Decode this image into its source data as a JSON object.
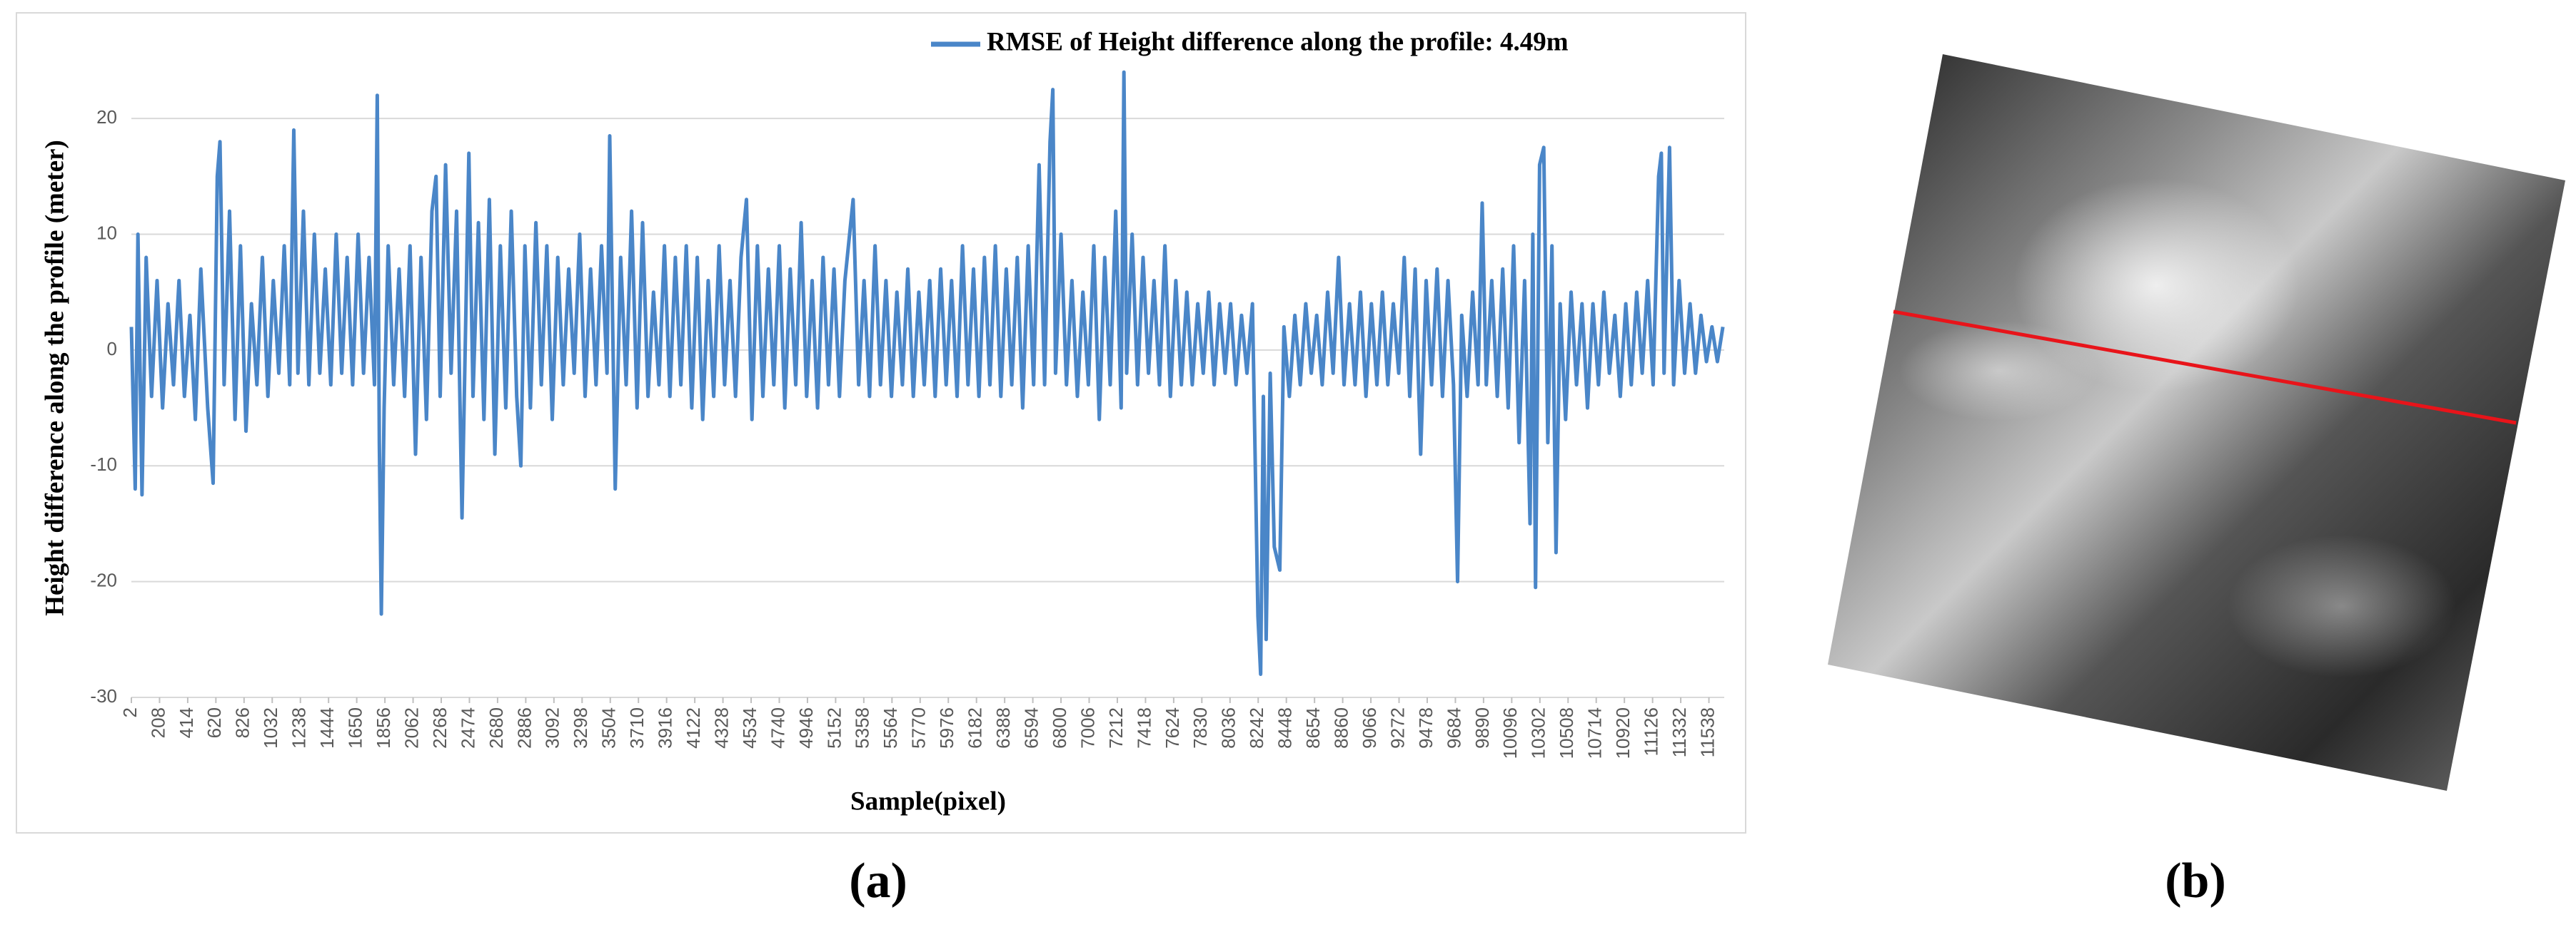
{
  "chart_data": {
    "type": "line",
    "legend_text_note_free": null,
    "ylabel": "Height difference along the profile (meter)",
    "xlabel": "Sample(pixel)",
    "ylim": [
      -30,
      25
    ],
    "yticks": [
      -30,
      -20,
      -10,
      0,
      10,
      20
    ],
    "grid": true,
    "xlim": [
      2,
      11650
    ],
    "xticks": [
      2,
      208,
      414,
      620,
      826,
      1032,
      1238,
      1444,
      1650,
      1856,
      2062,
      2268,
      2474,
      2680,
      2886,
      3092,
      3298,
      3504,
      3710,
      3916,
      4122,
      4328,
      4534,
      4740,
      4946,
      5152,
      5358,
      5564,
      5770,
      5976,
      6182,
      6388,
      6594,
      6800,
      7006,
      7212,
      7418,
      7624,
      7830,
      8036,
      8242,
      8448,
      8654,
      8860,
      9066,
      9272,
      9478,
      9684,
      9890,
      10096,
      10302,
      10508,
      10714,
      10920,
      11126,
      11332,
      11538
    ],
    "legend": "top-right",
    "x": [
      2,
      30,
      50,
      80,
      110,
      150,
      190,
      230,
      270,
      310,
      350,
      390,
      430,
      470,
      510,
      560,
      600,
      630,
      650,
      680,
      720,
      760,
      800,
      840,
      880,
      920,
      960,
      1000,
      1040,
      1080,
      1120,
      1160,
      1190,
      1220,
      1260,
      1300,
      1340,
      1380,
      1420,
      1460,
      1500,
      1540,
      1580,
      1620,
      1660,
      1700,
      1740,
      1780,
      1800,
      1815,
      1830,
      1850,
      1880,
      1920,
      1960,
      2000,
      2040,
      2080,
      2120,
      2160,
      2200,
      2230,
      2260,
      2300,
      2340,
      2380,
      2420,
      2470,
      2500,
      2540,
      2580,
      2620,
      2660,
      2700,
      2740,
      2780,
      2820,
      2850,
      2880,
      2920,
      2960,
      3000,
      3040,
      3080,
      3120,
      3160,
      3200,
      3240,
      3280,
      3320,
      3360,
      3400,
      3440,
      3480,
      3500,
      3540,
      3580,
      3620,
      3660,
      3700,
      3740,
      3780,
      3820,
      3860,
      3900,
      3940,
      3980,
      4020,
      4060,
      4100,
      4140,
      4180,
      4220,
      4260,
      4300,
      4340,
      4380,
      4420,
      4460,
      4500,
      4540,
      4580,
      4620,
      4660,
      4700,
      4740,
      4780,
      4820,
      4860,
      4900,
      4940,
      4980,
      5020,
      5060,
      5100,
      5140,
      5180,
      5220,
      5280,
      5320,
      5360,
      5400,
      5440,
      5480,
      5520,
      5560,
      5600,
      5640,
      5680,
      5720,
      5760,
      5800,
      5840,
      5880,
      5920,
      5960,
      6000,
      6040,
      6080,
      6120,
      6160,
      6200,
      6240,
      6280,
      6320,
      6360,
      6400,
      6440,
      6480,
      6520,
      6560,
      6600,
      6640,
      6680,
      6720,
      6740,
      6760,
      6800,
      6840,
      6880,
      6920,
      6960,
      7000,
      7040,
      7080,
      7120,
      7160,
      7200,
      7240,
      7260,
      7280,
      7320,
      7360,
      7400,
      7440,
      7480,
      7520,
      7560,
      7600,
      7640,
      7680,
      7720,
      7760,
      7800,
      7840,
      7880,
      7920,
      7960,
      8000,
      8040,
      8080,
      8120,
      8160,
      8200,
      8240,
      8260,
      8280,
      8300,
      8330,
      8360,
      8400,
      8430,
      8470,
      8510,
      8550,
      8590,
      8630,
      8670,
      8710,
      8750,
      8790,
      8830,
      8870,
      8910,
      8950,
      8990,
      9030,
      9070,
      9110,
      9150,
      9190,
      9230,
      9270,
      9310,
      9350,
      9390,
      9430,
      9470,
      9510,
      9550,
      9590,
      9630,
      9670,
      9700,
      9730,
      9770,
      9810,
      9850,
      9880,
      9910,
      9950,
      9990,
      10030,
      10070,
      10110,
      10150,
      10190,
      10230,
      10250,
      10270,
      10300,
      10330,
      10360,
      10390,
      10420,
      10450,
      10490,
      10530,
      10570,
      10610,
      10650,
      10690,
      10730,
      10770,
      10810,
      10850,
      10890,
      10930,
      10970,
      11010,
      11050,
      11090,
      11130,
      11170,
      11190,
      11210,
      11250,
      11280,
      11320,
      11360,
      11400,
      11440,
      11480,
      11520,
      11560,
      11600,
      11640
    ],
    "series": [
      {
        "name": "RMSE of Height difference along the profile: 4.49m",
        "color": "#4a86c8",
        "values": [
          2,
          -12,
          10,
          -12.5,
          8,
          -4,
          6,
          -5,
          4,
          -3,
          6,
          -4,
          3,
          -6,
          7,
          -5,
          -11.5,
          15,
          18,
          -3,
          12,
          -6,
          9,
          -7,
          4,
          -3,
          8,
          -4,
          6,
          -2,
          9,
          -3,
          19,
          -2,
          12,
          -3,
          10,
          -2,
          7,
          -3,
          10,
          -2,
          8,
          -3,
          10,
          -2,
          8,
          -3,
          22,
          -8,
          -22.8,
          -5,
          9,
          -3,
          7,
          -4,
          9,
          -9,
          8,
          -6,
          12,
          15,
          -4,
          16,
          -2,
          12,
          -14.5,
          17,
          -4,
          11,
          -6,
          13,
          -9,
          9,
          -5,
          12,
          -4,
          -10,
          9,
          -5,
          11,
          -3,
          9,
          -6,
          8,
          -3,
          7,
          -2,
          10,
          -4,
          7,
          -3,
          9,
          -2,
          18.5,
          -12,
          8,
          -3,
          12,
          -5,
          11,
          -4,
          5,
          -3,
          9,
          -4,
          8,
          -3,
          9,
          -5,
          8,
          -6,
          6,
          -4,
          9,
          -3,
          6,
          -4,
          8,
          13,
          -6,
          9,
          -4,
          7,
          -3,
          9,
          -5,
          7,
          -3,
          11,
          -4,
          6,
          -5,
          8,
          -3,
          7,
          -4,
          6,
          13,
          -3,
          6,
          -4,
          9,
          -3,
          6,
          -4,
          5,
          -3,
          7,
          -4,
          5,
          -3,
          6,
          -4,
          7,
          -3,
          6,
          -4,
          9,
          -3,
          7,
          -4,
          8,
          -3,
          9,
          -4,
          7,
          -3,
          8,
          -5,
          9,
          -3,
          16,
          -3,
          18,
          22.5,
          -2,
          10,
          -3,
          6,
          -4,
          5,
          -3,
          9,
          -6,
          8,
          -3,
          12,
          -5,
          24,
          -2,
          10,
          -3,
          8,
          -2,
          6,
          -3,
          9,
          -4,
          6,
          -3,
          5,
          -3,
          4,
          -2,
          5,
          -3,
          4,
          -2,
          4,
          -3,
          3,
          -2,
          4,
          -23,
          -28,
          -4,
          -25,
          -2,
          -17,
          -19,
          2,
          -4,
          3,
          -3,
          4,
          -2,
          3,
          -3,
          5,
          -2,
          8,
          -3,
          4,
          -3,
          5,
          -4,
          4,
          -3,
          5,
          -3,
          4,
          -2,
          8,
          -4,
          7,
          -9,
          6,
          -3,
          7,
          -4,
          6,
          -3,
          -20,
          3,
          -4,
          5,
          -3,
          12.7,
          -3,
          6,
          -4,
          7,
          -5,
          9,
          -8,
          6,
          -15,
          10,
          -20.5,
          16,
          17.5,
          -8,
          9,
          -17.5,
          4,
          -6,
          5,
          -3,
          4,
          -5,
          4,
          -3,
          5,
          -2,
          3,
          -4,
          4,
          -3,
          5,
          -2,
          6,
          -3,
          15,
          17,
          -2,
          17.5,
          -3,
          6,
          -2,
          4,
          -2,
          3,
          -1,
          2,
          -1,
          2
        ]
      }
    ]
  },
  "captions": [
    "(a)",
    "(b)"
  ]
}
